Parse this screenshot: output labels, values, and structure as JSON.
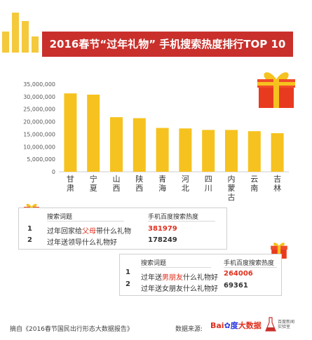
{
  "title": "2016春节“过年礼物” 手机搜索热度排行TOP 10",
  "chart_data": {
    "type": "bar",
    "categories": [
      "甘肃",
      "宁夏",
      "山西",
      "陕西",
      "青海",
      "河北",
      "四川",
      "内蒙古",
      "云南",
      "吉林"
    ],
    "values": [
      31300000,
      30800000,
      21800000,
      21400000,
      17500000,
      17300000,
      16700000,
      16700000,
      16200000,
      15400000
    ],
    "ylim": [
      0,
      35000000
    ],
    "yticks": [
      "0",
      "5,000,000",
      "10,000,000",
      "15,000,000",
      "20,000,000",
      "25,000,000",
      "30,000,000",
      "35,000,000"
    ],
    "bar_color": "#f6c21f"
  },
  "table1": {
    "header_term": "搜索词题",
    "header_heat": "手机百度搜索热度",
    "rows": [
      {
        "rank": "1",
        "pre": "过年回家给",
        "hl": "父母",
        "post": "带什么礼物",
        "value": "381979"
      },
      {
        "rank": "2",
        "pre": "过年送领导什么礼物好",
        "hl": "",
        "post": "",
        "value": "178249"
      }
    ]
  },
  "table2": {
    "header_term": "搜索词题",
    "header_heat": "手机百度搜索热度",
    "rows": [
      {
        "rank": "1",
        "pre": "过年送",
        "hl": "男朋友",
        "post": "什么礼物好",
        "value": "264006"
      },
      {
        "rank": "2",
        "pre": "过年送女朋友什么礼物好",
        "hl": "",
        "post": "",
        "value": "69361"
      }
    ]
  },
  "footer": {
    "source": "摘自《2016春节国民出行形态大数据报告》",
    "data_source_label": "数据来源:",
    "baidu_1": "Bai",
    "baidu_2": "度",
    "baidu_3": "大数据",
    "lab_line1": "百度新闻",
    "lab_line2": "实验室"
  }
}
